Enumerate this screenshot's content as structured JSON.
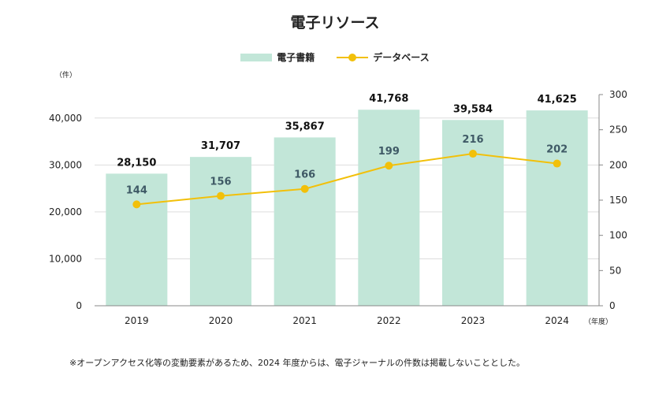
{
  "chart_data": {
    "type": "bar",
    "title": "電子リソース",
    "categories": [
      "2019",
      "2020",
      "2021",
      "2022",
      "2023",
      "2024"
    ],
    "series": [
      {
        "name": "電子書籍",
        "type": "bar",
        "axis": "left",
        "values": [
          28150,
          31707,
          35867,
          41768,
          39584,
          41625
        ],
        "labels": [
          "28,150",
          "31,707",
          "35,867",
          "41,768",
          "39,584",
          "41,625"
        ],
        "color": "#c2e6d8"
      },
      {
        "name": "データベース",
        "type": "line",
        "axis": "right",
        "values": [
          144,
          156,
          166,
          199,
          216,
          202
        ],
        "labels": [
          "144",
          "156",
          "166",
          "199",
          "216",
          "202"
        ],
        "color": "#f2c00a"
      }
    ],
    "y_left": {
      "ylim": [
        0,
        45000
      ],
      "ticks": [
        0,
        10000,
        20000,
        30000,
        40000
      ],
      "tick_labels": [
        "0",
        "10,000",
        "20,000",
        "30,000",
        "40,000"
      ],
      "unit": "（件）"
    },
    "y_right": {
      "ylim": [
        0,
        300
      ],
      "ticks": [
        0,
        50,
        100,
        150,
        200,
        250,
        300
      ],
      "tick_labels": [
        "0",
        "50",
        "100",
        "150",
        "200",
        "250",
        "300"
      ]
    },
    "x_unit": "（年度）",
    "grid": true,
    "legend_position": "top-center"
  },
  "footnote": "※オープンアクセス化等の変動要素があるため、2024 年度からは、電子ジャーナルの件数は掲載しないこととした。",
  "colors": {
    "bar": "#c2e6d8",
    "line": "#f2c00a",
    "line_label": "#3f5a66",
    "grid": "#dddddd",
    "axis": "#888888"
  }
}
